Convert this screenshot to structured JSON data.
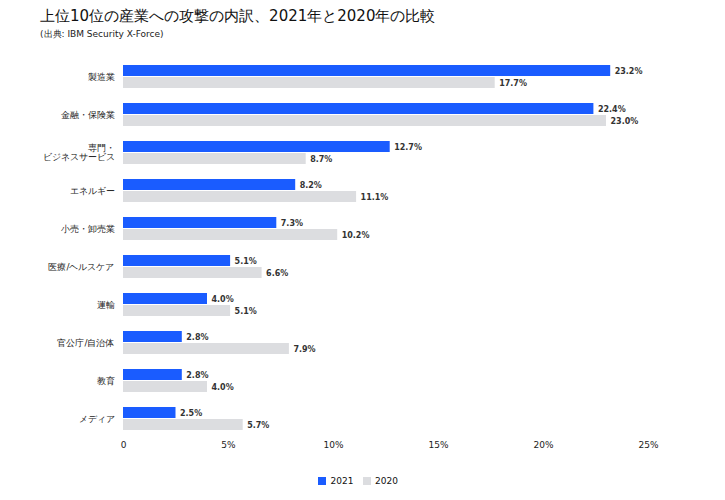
{
  "chart_data": {
    "type": "bar",
    "orientation": "horizontal",
    "title": "上位10位の産業への攻撃の内訳、2021年と2020年の比較",
    "subtitle": "(出典: IBM Security X-Force)",
    "categories": [
      "製造業",
      "金融・保険業",
      "専門・\nビジネスサービス",
      "エネルギー",
      "小売・卸売業",
      "医療/ヘルスケア",
      "運輸",
      "官公庁/自治体",
      "教育",
      "メディア"
    ],
    "series": [
      {
        "name": "2021",
        "color": "#1a5cff",
        "values": [
          23.2,
          22.4,
          12.7,
          8.2,
          7.3,
          5.1,
          4.0,
          2.8,
          2.8,
          2.5
        ],
        "value_labels": [
          "23.2%",
          "22.4%",
          "12.7%",
          "8.2%",
          "7.3%",
          "5.1%",
          "4.0%",
          "2.8%",
          "2.8%",
          "2.5%"
        ]
      },
      {
        "name": "2020",
        "color": "#dcdde0",
        "values": [
          17.7,
          23.0,
          8.7,
          11.1,
          10.2,
          6.6,
          5.1,
          7.9,
          4.0,
          5.7
        ],
        "value_labels": [
          "17.7%",
          "23.0%",
          "8.7%",
          "11.1%",
          "10.2%",
          "6.6%",
          "5.1%",
          "7.9%",
          "4.0%",
          "5.7%"
        ]
      }
    ],
    "xlim": [
      0,
      25
    ],
    "xticks": [
      0,
      {
        "value": 5,
        "label": "5%"
      },
      {
        "value": 10,
        "label": "10%"
      },
      {
        "value": 15,
        "label": "15%"
      },
      {
        "value": 20,
        "label": "20%"
      },
      {
        "value": 25,
        "label": "25%"
      }
    ],
    "grid": false,
    "data_labels": true,
    "legend": "bottom"
  }
}
